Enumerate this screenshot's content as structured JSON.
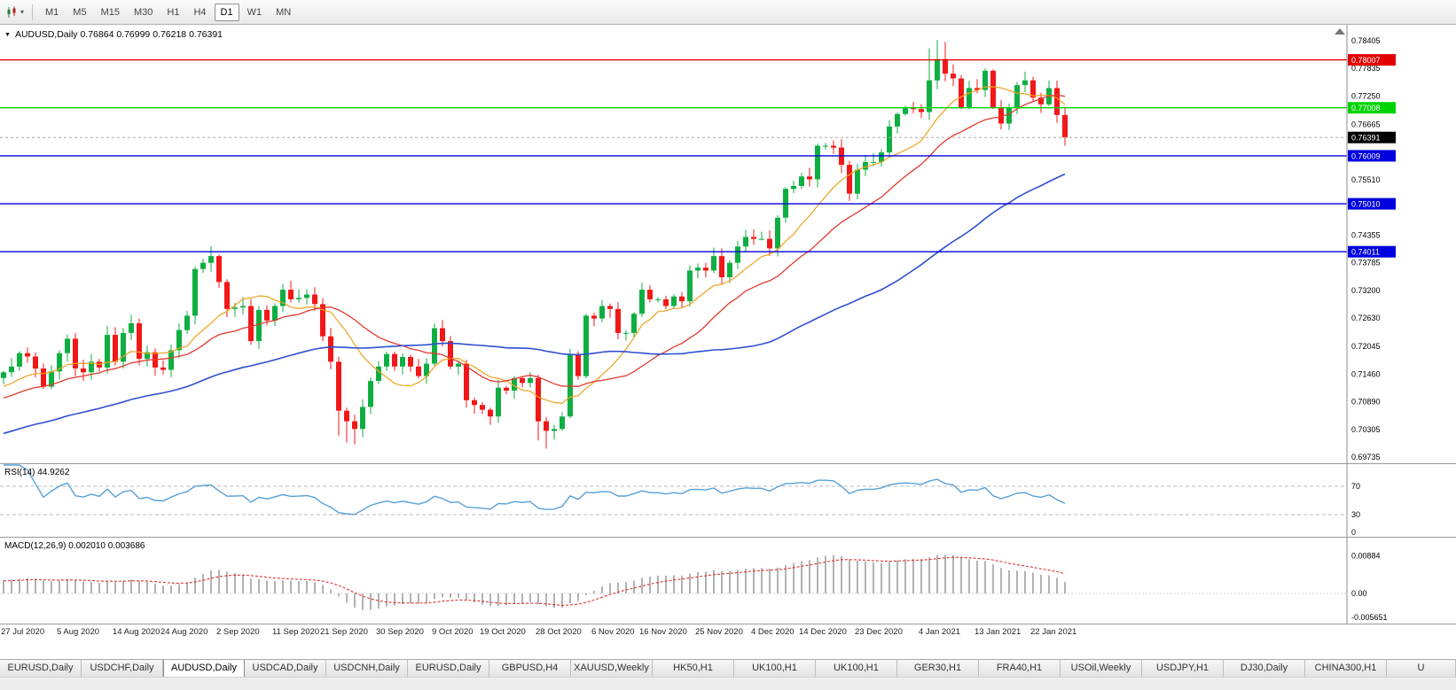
{
  "toolbar": {
    "timeframes": [
      "M1",
      "M5",
      "M15",
      "M30",
      "H1",
      "H4",
      "D1",
      "W1",
      "MN"
    ],
    "active_timeframe": "D1"
  },
  "chart": {
    "title_line": "AUDUSD,Daily 0.76864 0.76999 0.76218 0.76391",
    "symbol": "AUDUSD",
    "period": "Daily",
    "ohlc_display": {
      "open": "0.76864",
      "high": "0.76999",
      "low": "0.76218",
      "close": "0.76391"
    },
    "colors": {
      "bull": "#0fae42",
      "bear": "#f01818",
      "axis_line": "#8c8c8c",
      "separator": "#9a9a9a",
      "current_line": "#aaaaaa"
    },
    "scale": {
      "price_max": 0.787,
      "price_min": 0.69625
    },
    "price_axis": {
      "ticks": [
        {
          "v": 0.78405,
          "label": "0.78405"
        },
        {
          "v": 0.77835,
          "label": "0.77835"
        },
        {
          "v": 0.7725,
          "label": "0.77250"
        },
        {
          "v": 0.76665,
          "label": "0.76665"
        },
        {
          "v": 0.7551,
          "label": "0.75510"
        },
        {
          "v": 0.74355,
          "label": "0.74355"
        },
        {
          "v": 0.73785,
          "label": "0.73785"
        },
        {
          "v": 0.732,
          "label": "0.73200"
        },
        {
          "v": 0.7263,
          "label": "0.72630"
        },
        {
          "v": 0.72045,
          "label": "0.72045"
        },
        {
          "v": 0.7146,
          "label": "0.71460"
        },
        {
          "v": 0.7089,
          "label": "0.70890"
        },
        {
          "v": 0.70305,
          "label": "0.70305"
        },
        {
          "v": 0.69735,
          "label": "0.69735"
        }
      ]
    },
    "levels": [
      {
        "value": 0.78007,
        "label": "0.78007",
        "color": "#e30000"
      },
      {
        "value": 0.77008,
        "label": "0.77008",
        "color": "#00d400"
      },
      {
        "value": 0.76009,
        "label": "0.76009",
        "color": "#0000dd"
      },
      {
        "value": 0.7501,
        "label": "0.75010",
        "color": "#0000dd"
      },
      {
        "value": 0.74011,
        "label": "0.74011",
        "color": "#0000dd"
      }
    ],
    "current_price": {
      "value": 0.76391,
      "label": "0.76391",
      "badge_color": "#000000"
    },
    "moving_averages": [
      {
        "name": "ma-fast",
        "period": 10,
        "color": "#f0a11e",
        "width": 1.2
      },
      {
        "name": "ma-mid",
        "period": 21,
        "color": "#e03a30",
        "width": 1.3
      },
      {
        "name": "ma-slow",
        "period": 55,
        "color": "#2f4fd2",
        "width": 1.6
      }
    ],
    "candles": {
      "first_open": 0.7138,
      "closes": [
        0.715,
        0.7162,
        0.719,
        0.7183,
        0.7158,
        0.712,
        0.7152,
        0.719,
        0.722,
        0.7158,
        0.715,
        0.7172,
        0.716,
        0.7228,
        0.7172,
        0.7232,
        0.7252,
        0.7178,
        0.7192,
        0.716,
        0.7155,
        0.7196,
        0.7238,
        0.7268,
        0.7365,
        0.7378,
        0.7392,
        0.7338,
        0.7282,
        0.7285,
        0.7288,
        0.7215,
        0.728,
        0.7258,
        0.7288,
        0.7322,
        0.7302,
        0.7305,
        0.7312,
        0.7292,
        0.7225,
        0.7172,
        0.707,
        0.7048,
        0.7032,
        0.7078,
        0.7132,
        0.7162,
        0.7188,
        0.7162,
        0.7182,
        0.7162,
        0.7142,
        0.7168,
        0.7242,
        0.7215,
        0.7162,
        0.7168,
        0.7092,
        0.7082,
        0.7072,
        0.7058,
        0.7118,
        0.7112,
        0.7138,
        0.7128,
        0.7138,
        0.7048,
        0.7028,
        0.7032,
        0.7058,
        0.7188,
        0.7142,
        0.7268,
        0.7262,
        0.7288,
        0.7282,
        0.7232,
        0.7232,
        0.7272,
        0.7322,
        0.7302,
        0.7302,
        0.7288,
        0.7308,
        0.7298,
        0.7362,
        0.7368,
        0.7362,
        0.7392,
        0.7348,
        0.7378,
        0.7412,
        0.7432,
        0.7428,
        0.7428,
        0.7408,
        0.7472,
        0.7532,
        0.7538,
        0.7558,
        0.7552,
        0.7622,
        0.7622,
        0.7618,
        0.7582,
        0.7522,
        0.7572,
        0.7588,
        0.7588,
        0.7608,
        0.7662,
        0.7688,
        0.7702,
        0.7698,
        0.7692,
        0.7758,
        0.7802,
        0.7772,
        0.7762,
        0.7702,
        0.7742,
        0.7738,
        0.7778,
        0.7702,
        0.7668,
        0.7702,
        0.7748,
        0.7758,
        0.7722,
        0.7708,
        0.7742,
        0.7686,
        0.76391
      ],
      "high_overrides": {
        "26": 0.7413,
        "116": 0.7825,
        "117": 0.7842,
        "118": 0.7838,
        "133": 0.76999
      },
      "low_overrides": {
        "42": 0.7018,
        "43": 0.7004,
        "44": 0.7,
        "67": 0.7008,
        "68": 0.6991,
        "133": 0.76218
      }
    },
    "date_labels": [
      {
        "label": "27 Jul 2020",
        "i": 0
      },
      {
        "label": "5 Aug 2020",
        "i": 7
      },
      {
        "label": "14 Aug 2020",
        "i": 14
      },
      {
        "label": "24 Aug 2020",
        "i": 20
      },
      {
        "label": "2 Sep 2020",
        "i": 27
      },
      {
        "label": "11 Sep 2020",
        "i": 34
      },
      {
        "label": "21 Sep 2020",
        "i": 40
      },
      {
        "label": "30 Sep 2020",
        "i": 47
      },
      {
        "label": "9 Oct 2020",
        "i": 54
      },
      {
        "label": "19 Oct 2020",
        "i": 60
      },
      {
        "label": "28 Oct 2020",
        "i": 67
      },
      {
        "label": "6 Nov 2020",
        "i": 74
      },
      {
        "label": "16 Nov 2020",
        "i": 80
      },
      {
        "label": "25 Nov 2020",
        "i": 87
      },
      {
        "label": "4 Dec 2020",
        "i": 94
      },
      {
        "label": "14 Dec 2020",
        "i": 100
      },
      {
        "label": "23 Dec 2020",
        "i": 107
      },
      {
        "label": "4 Jan 2021",
        "i": 115
      },
      {
        "label": "13 Jan 2021",
        "i": 122
      },
      {
        "label": "22 Jan 2021",
        "i": 129
      }
    ]
  },
  "rsi": {
    "label": "RSI(14) 44.9262",
    "value": 44.9262,
    "period": 14,
    "color": "#58a0d6",
    "level_lines": [
      70,
      30
    ],
    "axis_labels": [
      {
        "v": 70,
        "label": "70"
      },
      {
        "v": 30,
        "label": "30"
      },
      {
        "v": 0,
        "label": "0"
      }
    ]
  },
  "macd": {
    "label": "MACD(12,26,9) 0.002010 0.003686",
    "fast": 12,
    "slow": 26,
    "signal": 9,
    "histogram_color": "#b2b2b2",
    "signal_color": "#dd3030",
    "axis_labels": [
      {
        "v": 0.00884,
        "label": "0.00884"
      },
      {
        "v": 0,
        "label": "0.00"
      },
      {
        "v": -0.005651,
        "label": "-0.005651"
      }
    ]
  },
  "tabs": {
    "active_index": 2,
    "items": [
      "EURUSD,Daily",
      "USDCHF,Daily",
      "AUDUSD,Daily",
      "USDCAD,Daily",
      "USDCNH,Daily",
      "EURUSD,Daily",
      "GBPUSD,H4",
      "XAUUSD,Weekly",
      "HK50,H1",
      "UK100,H1",
      "UK100,H1",
      "GER30,H1",
      "FRA40,H1",
      "USOil,Weekly",
      "USDJPY,H1",
      "DJ30,Daily",
      "CHINA300,H1",
      "U"
    ]
  }
}
